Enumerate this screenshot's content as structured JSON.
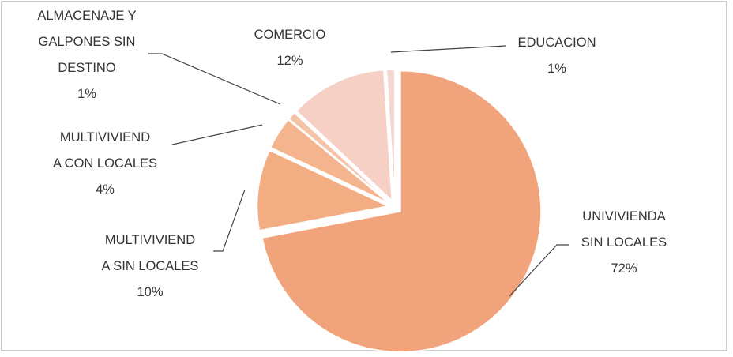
{
  "chart_data": {
    "type": "pie",
    "categories": [
      "UNIVIVIENDA\nSIN LOCALES",
      "MULTIVIVIEND\nA SIN LOCALES",
      "MULTIVIVIEND\nA CON LOCALES",
      "ALMACENAJE  Y\nGALPONES  SIN\nDESTINO",
      "COMERCIO",
      "EDUCACION"
    ],
    "values": [
      72,
      10,
      4,
      1,
      12,
      1
    ],
    "value_labels": [
      "72%",
      "10%",
      "4%",
      "1%",
      "12%",
      "1%"
    ],
    "colors": [
      "#f1a47c",
      "#f3ad82",
      "#f4b48d",
      "#f5c3a8",
      "#f6cfc5",
      "#f4d6d2"
    ]
  }
}
